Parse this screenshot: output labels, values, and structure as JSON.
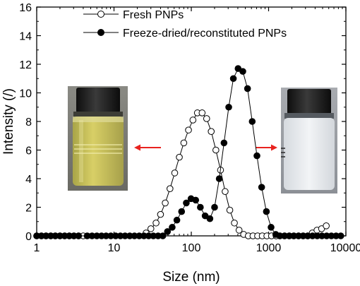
{
  "chart_data": {
    "type": "scatter",
    "xlabel": "Size (nm)",
    "ylabel": "Intensity (/)",
    "x_scale": "log",
    "xlim": [
      1,
      10000
    ],
    "ylim": [
      0,
      16
    ],
    "x_ticks": [
      1,
      10,
      100,
      1000,
      10000
    ],
    "x_tick_labels": [
      "1",
      "10",
      "100",
      "1000",
      "10000"
    ],
    "y_ticks": [
      0,
      2,
      4,
      6,
      8,
      10,
      12,
      14,
      16
    ],
    "y_tick_labels": [
      "0",
      "2",
      "4",
      "6",
      "8",
      "10",
      "12",
      "14",
      "16"
    ],
    "legend_position": "top-left",
    "grid": false,
    "series": [
      {
        "name": "Fresh PNPs",
        "marker": "open-circle",
        "connected": true,
        "points": [
          [
            1.0,
            0
          ],
          [
            1.15,
            0
          ],
          [
            1.32,
            0
          ],
          [
            1.52,
            0
          ],
          [
            1.74,
            0
          ],
          [
            2.0,
            0
          ],
          [
            2.3,
            0
          ],
          [
            2.64,
            0
          ],
          [
            3.03,
            0
          ],
          [
            3.48,
            0
          ],
          [
            4.0,
            0
          ],
          [
            26,
            0.2
          ],
          [
            30,
            0.5
          ],
          [
            35,
            0.9
          ],
          [
            40,
            1.5
          ],
          [
            46,
            2.3
          ],
          [
            53,
            3.3
          ],
          [
            61,
            4.4
          ],
          [
            70,
            5.5
          ],
          [
            80,
            6.5
          ],
          [
            92,
            7.4
          ],
          [
            105,
            8.1
          ],
          [
            120,
            8.6
          ],
          [
            138,
            8.6
          ],
          [
            158,
            8.2
          ],
          [
            181,
            7.3
          ],
          [
            208,
            6.0
          ],
          [
            239,
            4.6
          ],
          [
            274,
            3.1
          ],
          [
            315,
            1.8
          ],
          [
            361,
            0.9
          ],
          [
            415,
            0.4
          ],
          [
            476,
            0.1
          ],
          [
            547,
            0
          ],
          [
            628,
            0
          ],
          [
            721,
            0
          ],
          [
            828,
            0
          ],
          [
            950,
            0
          ],
          [
            1091,
            0
          ],
          [
            1253,
            0
          ],
          [
            1400,
            0
          ],
          [
            1610,
            0
          ],
          [
            1850,
            0
          ],
          [
            2120,
            0
          ],
          [
            2440,
            0
          ],
          [
            2800,
            0
          ],
          [
            3200,
            0
          ],
          [
            3680,
            0.2
          ],
          [
            4230,
            0.4
          ],
          [
            4850,
            0.5
          ],
          [
            5570,
            0.7
          ]
        ]
      },
      {
        "name": "Freeze-dried/reconstituted PNPs",
        "marker": "filled-circle",
        "connected": true,
        "points": [
          [
            1.0,
            0
          ],
          [
            1.15,
            0
          ],
          [
            1.32,
            0
          ],
          [
            1.52,
            0
          ],
          [
            1.74,
            0
          ],
          [
            2.0,
            0
          ],
          [
            2.3,
            0
          ],
          [
            2.64,
            0
          ],
          [
            3.03,
            0
          ],
          [
            3.48,
            0
          ],
          [
            4.5,
            0
          ],
          [
            5.2,
            0
          ],
          [
            6.0,
            0
          ],
          [
            6.9,
            0
          ],
          [
            7.9,
            0
          ],
          [
            9.1,
            0
          ],
          [
            10.5,
            0
          ],
          [
            12.1,
            0
          ],
          [
            13.9,
            0
          ],
          [
            16.0,
            0
          ],
          [
            18.4,
            0
          ],
          [
            21.2,
            0
          ],
          [
            24.4,
            0
          ],
          [
            28.1,
            0
          ],
          [
            32.3,
            0
          ],
          [
            37.2,
            0
          ],
          [
            42.8,
            0
          ],
          [
            49.2,
            0.3
          ],
          [
            56.6,
            0.6
          ],
          [
            65.1,
            1.1
          ],
          [
            74.9,
            1.7
          ],
          [
            86.2,
            2.3
          ],
          [
            99.2,
            2.6
          ],
          [
            114,
            2.5
          ],
          [
            131,
            2.0
          ],
          [
            151,
            1.4
          ],
          [
            174,
            1.2
          ],
          [
            200,
            2.0
          ],
          [
            230,
            4.0
          ],
          [
            265,
            6.5
          ],
          [
            305,
            9.0
          ],
          [
            350,
            11.0
          ],
          [
            403,
            11.7
          ],
          [
            464,
            11.5
          ],
          [
            534,
            10.3
          ],
          [
            614,
            8.0
          ],
          [
            707,
            5.6
          ],
          [
            813,
            3.4
          ],
          [
            936,
            1.7
          ],
          [
            1077,
            0.6
          ],
          [
            1239,
            0.1
          ],
          [
            1400,
            0
          ],
          [
            1610,
            0
          ],
          [
            1850,
            0
          ],
          [
            2120,
            0
          ],
          [
            2440,
            0
          ],
          [
            2800,
            0
          ],
          [
            3220,
            0
          ],
          [
            3700,
            0
          ],
          [
            4260,
            0
          ],
          [
            4900,
            0
          ],
          [
            5640,
            0
          ],
          [
            6490,
            0
          ],
          [
            7470,
            0
          ],
          [
            8590,
            0
          ]
        ]
      }
    ]
  },
  "insets": [
    {
      "name": "fresh-vial-photo",
      "description_color": "yellow-liquid"
    },
    {
      "name": "reconstituted-vial-photo",
      "description_color": "milky-white-liquid"
    }
  ],
  "colors": {
    "axis": "#000000",
    "arrow": "#e8231f",
    "vial_cap": "#1c1c1c",
    "fresh_liquid": "#c9c25a",
    "reconstituted_liquid": "#e6eaee",
    "photo_background": "#7a7a76"
  }
}
